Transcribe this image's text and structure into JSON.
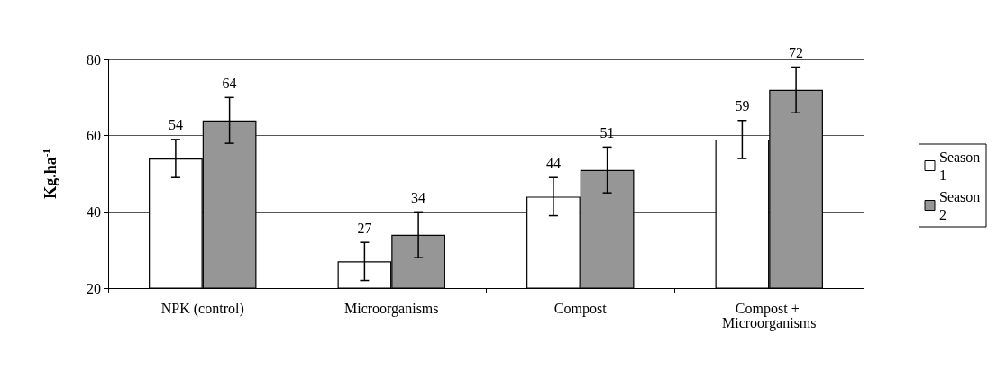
{
  "chart_data": {
    "type": "bar",
    "ylabel": "Kg.ha$^{-1}$",
    "categories": [
      "NPK (control)",
      "Microorganisms",
      "Compost",
      "Compost + Microorganisms"
    ],
    "series": [
      {
        "name": "Season 1",
        "color": "#ffffff",
        "values": [
          54,
          27,
          44,
          59
        ],
        "errors": [
          5,
          5,
          5,
          5
        ]
      },
      {
        "name": "Season 2",
        "color": "#969696",
        "values": [
          64,
          34,
          51,
          72
        ],
        "errors": [
          6,
          6,
          6,
          6
        ]
      }
    ],
    "ylim": [
      20,
      80
    ],
    "yticks": [
      20,
      40,
      60,
      80
    ],
    "grid": "y",
    "legend": "right",
    "data_labels": true
  }
}
